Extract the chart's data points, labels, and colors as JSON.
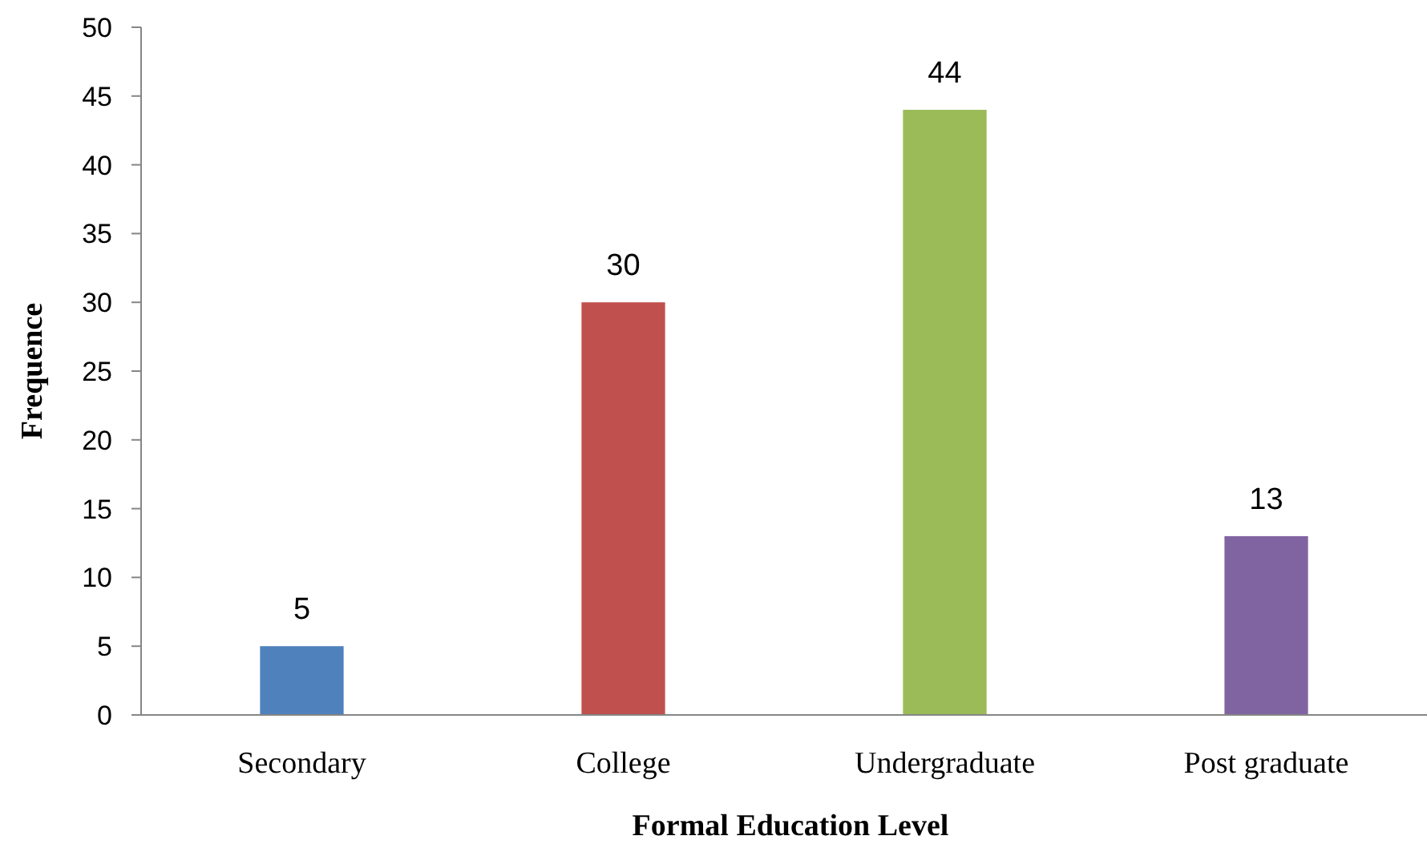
{
  "chart_data": {
    "type": "bar",
    "xlabel": "Formal Education Level",
    "ylabel": "Frequence",
    "categories": [
      "Secondary",
      "College",
      "Undergraduate",
      "Post graduate"
    ],
    "values": [
      5,
      30,
      44,
      13
    ],
    "colors": [
      "#4f81bd",
      "#c0504d",
      "#9bbb59",
      "#8064a2"
    ],
    "ylim": [
      0,
      50
    ],
    "yticks": [
      0,
      5,
      10,
      15,
      20,
      25,
      30,
      35,
      40,
      45,
      50
    ],
    "data_labels": true,
    "grid": false
  }
}
